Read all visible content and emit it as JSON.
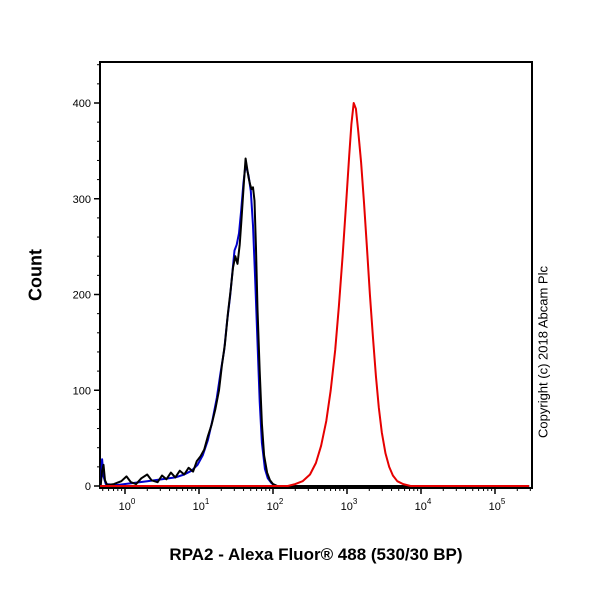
{
  "annotations": {
    "copyright": "Copyright (c) 2018 Abcam Plc"
  },
  "chart_data": {
    "type": "line",
    "subtype": "flow-cytometry-histogram",
    "title": "RPA2 - Alexa Fluor® 488 (530/30 BP)",
    "xlabel": "RPA2 - Alexa Fluor® 488 (530/30 BP)",
    "ylabel": "Count",
    "x_scale": "log10",
    "x_ticks_exponents": [
      0,
      1,
      2,
      3,
      4,
      5
    ],
    "y_ticks": [
      0,
      100,
      200,
      300,
      400
    ],
    "xlim_log10": [
      -0.34,
      5.5
    ],
    "ylim": [
      0,
      445
    ],
    "grid": false,
    "legend": "none",
    "series": [
      {
        "name": "blue-curve",
        "color": "#0000cc",
        "points": [
          [
            -0.33,
            0
          ],
          [
            -0.31,
            28
          ],
          [
            -0.29,
            10
          ],
          [
            -0.26,
            2
          ],
          [
            -0.1,
            1
          ],
          [
            0.1,
            3
          ],
          [
            0.3,
            5
          ],
          [
            0.5,
            7
          ],
          [
            0.68,
            9
          ],
          [
            0.8,
            12
          ],
          [
            0.9,
            16
          ],
          [
            0.98,
            22
          ],
          [
            1.05,
            32
          ],
          [
            1.12,
            48
          ],
          [
            1.18,
            68
          ],
          [
            1.24,
            92
          ],
          [
            1.29,
            118
          ],
          [
            1.34,
            142
          ],
          [
            1.38,
            172
          ],
          [
            1.42,
            198
          ],
          [
            1.45,
            222
          ],
          [
            1.48,
            246
          ],
          [
            1.51,
            252
          ],
          [
            1.54,
            264
          ],
          [
            1.57,
            288
          ],
          [
            1.6,
            316
          ],
          [
            1.63,
            336
          ],
          [
            1.65,
            330
          ],
          [
            1.67,
            324
          ],
          [
            1.7,
            308
          ],
          [
            1.73,
            272
          ],
          [
            1.76,
            215
          ],
          [
            1.79,
            150
          ],
          [
            1.82,
            88
          ],
          [
            1.85,
            45
          ],
          [
            1.89,
            18
          ],
          [
            1.93,
            8
          ],
          [
            1.98,
            3
          ],
          [
            2.03,
            0
          ],
          [
            5.45,
            0
          ]
        ]
      },
      {
        "name": "black-curve",
        "color": "#000000",
        "points": [
          [
            -0.33,
            0
          ],
          [
            -0.31,
            16
          ],
          [
            -0.29,
            22
          ],
          [
            -0.27,
            6
          ],
          [
            -0.24,
            1
          ],
          [
            -0.15,
            2
          ],
          [
            -0.05,
            5
          ],
          [
            0.02,
            10
          ],
          [
            0.08,
            4
          ],
          [
            0.15,
            2
          ],
          [
            0.22,
            8
          ],
          [
            0.3,
            12
          ],
          [
            0.36,
            6
          ],
          [
            0.44,
            4
          ],
          [
            0.5,
            11
          ],
          [
            0.56,
            7
          ],
          [
            0.62,
            14
          ],
          [
            0.68,
            9
          ],
          [
            0.74,
            16
          ],
          [
            0.8,
            12
          ],
          [
            0.86,
            19
          ],
          [
            0.92,
            15
          ],
          [
            0.97,
            26
          ],
          [
            1.02,
            31
          ],
          [
            1.07,
            38
          ],
          [
            1.12,
            52
          ],
          [
            1.17,
            64
          ],
          [
            1.22,
            80
          ],
          [
            1.27,
            100
          ],
          [
            1.31,
            126
          ],
          [
            1.35,
            148
          ],
          [
            1.39,
            180
          ],
          [
            1.43,
            206
          ],
          [
            1.46,
            228
          ],
          [
            1.49,
            240
          ],
          [
            1.52,
            232
          ],
          [
            1.55,
            252
          ],
          [
            1.57,
            274
          ],
          [
            1.59,
            298
          ],
          [
            1.61,
            320
          ],
          [
            1.63,
            342
          ],
          [
            1.65,
            332
          ],
          [
            1.67,
            322
          ],
          [
            1.69,
            315
          ],
          [
            1.71,
            310
          ],
          [
            1.73,
            312
          ],
          [
            1.75,
            298
          ],
          [
            1.77,
            248
          ],
          [
            1.79,
            185
          ],
          [
            1.82,
            120
          ],
          [
            1.85,
            65
          ],
          [
            1.88,
            32
          ],
          [
            1.92,
            14
          ],
          [
            1.96,
            6
          ],
          [
            2.0,
            2
          ],
          [
            2.06,
            0
          ],
          [
            5.45,
            0
          ]
        ]
      },
      {
        "name": "red-curve",
        "color": "#e60000",
        "points": [
          [
            -0.33,
            0
          ],
          [
            2.2,
            0
          ],
          [
            2.3,
            2
          ],
          [
            2.4,
            5
          ],
          [
            2.5,
            12
          ],
          [
            2.58,
            24
          ],
          [
            2.65,
            42
          ],
          [
            2.72,
            68
          ],
          [
            2.78,
            100
          ],
          [
            2.84,
            142
          ],
          [
            2.89,
            188
          ],
          [
            2.94,
            240
          ],
          [
            2.99,
            298
          ],
          [
            3.03,
            345
          ],
          [
            3.06,
            378
          ],
          [
            3.09,
            400
          ],
          [
            3.12,
            394
          ],
          [
            3.15,
            372
          ],
          [
            3.19,
            338
          ],
          [
            3.23,
            296
          ],
          [
            3.27,
            248
          ],
          [
            3.31,
            200
          ],
          [
            3.35,
            156
          ],
          [
            3.39,
            115
          ],
          [
            3.43,
            82
          ],
          [
            3.47,
            56
          ],
          [
            3.52,
            34
          ],
          [
            3.57,
            20
          ],
          [
            3.62,
            11
          ],
          [
            3.68,
            5
          ],
          [
            3.76,
            2
          ],
          [
            3.86,
            0
          ],
          [
            5.45,
            0
          ]
        ]
      }
    ]
  }
}
